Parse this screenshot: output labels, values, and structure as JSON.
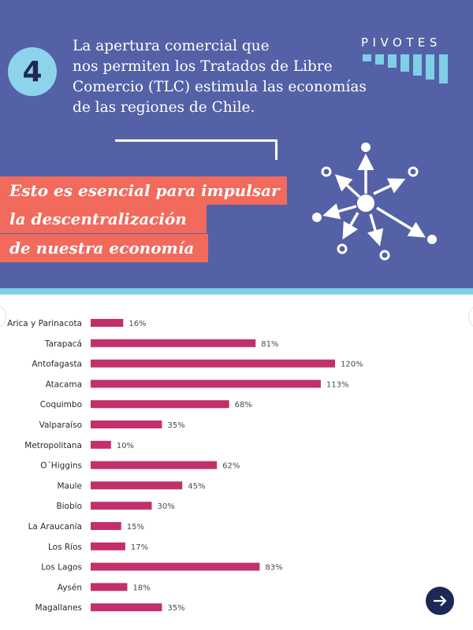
{
  "header": {
    "number": "4",
    "intro_lines": [
      "La apertura comercial que",
      "nos permiten los Tratados de Libre",
      "Comercio (TLC) estimula las economías",
      "de las regiones de Chile."
    ],
    "brand": "PIVOTES",
    "highlight_lines": [
      "Esto es esencial para impulsar",
      "la descentralización",
      "de nuestra economía"
    ]
  },
  "colors": {
    "banner": "#5461a6",
    "accent_stripe": "#7fcfe6",
    "number_circle": "#8ed3ec",
    "highlight": "#f16a5c",
    "bar": "#c2306c",
    "nav_button": "#1e2856"
  },
  "icons": {
    "network": "network-diagram-icon",
    "brand_bars": "bars-logo-icon",
    "next": "arrow-right-icon"
  },
  "chart_data": {
    "type": "bar",
    "orientation": "horizontal",
    "categories": [
      "Arica y Parinacota",
      "Tarapacá",
      "Antofagasta",
      "Atacama",
      "Coquimbo",
      "Valparaíso",
      "Metropolitana",
      "O´Higgins",
      "Maule",
      "Biobío",
      "La Araucanía",
      "Los Ríos",
      "Los Lagos",
      "Aysén",
      "Magallanes"
    ],
    "values": [
      16,
      81,
      120,
      113,
      68,
      35,
      10,
      62,
      45,
      30,
      15,
      17,
      83,
      18,
      35
    ],
    "value_labels": [
      "16%",
      "81%",
      "120%",
      "113%",
      "68%",
      "35%",
      "10%",
      "62%",
      "45%",
      "30%",
      "15%",
      "17%",
      "83%",
      "18%",
      "35%"
    ],
    "unit": "%",
    "xlim": [
      0,
      120
    ],
    "grid": false,
    "legend": "none"
  }
}
